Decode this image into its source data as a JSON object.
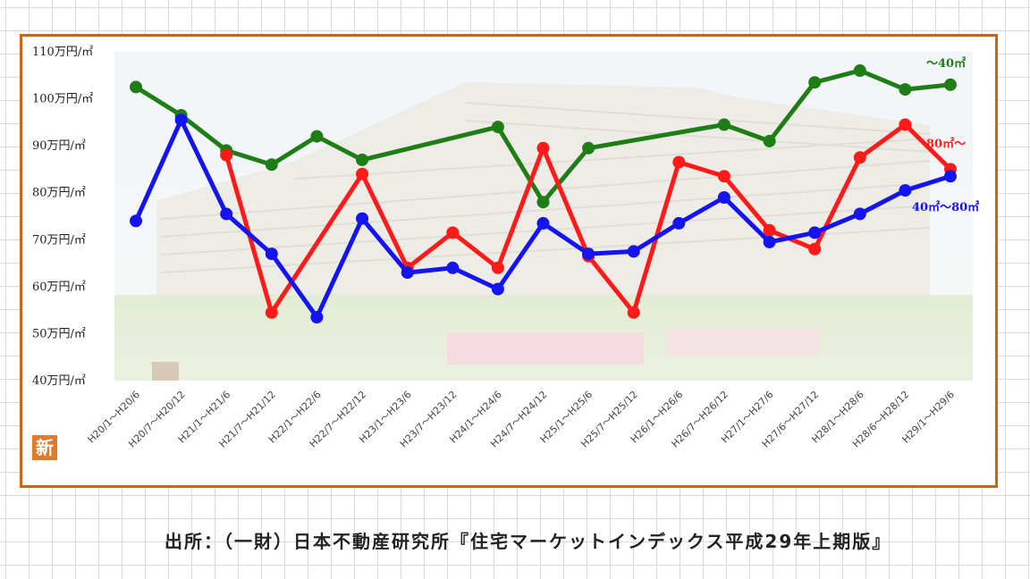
{
  "source_note": "出所：（一財）日本不動産研究所『住宅マーケットインデックス平成29年上期版』",
  "badge": "新",
  "chart_data": {
    "type": "line",
    "title": "",
    "xlabel": "",
    "ylabel": "",
    "ylim": [
      40,
      110
    ],
    "yticks": [
      110,
      100,
      90,
      80,
      70,
      60,
      50,
      40
    ],
    "ytick_labels": [
      "110万円/㎡",
      "100万円/㎡",
      "90万円/㎡",
      "80万円/㎡",
      "70万円/㎡",
      "60万円/㎡",
      "50万円/㎡",
      "40万円/㎡"
    ],
    "categories": [
      "H20/1～H20/6",
      "H20/7～H20/12",
      "H21/1～H21/6",
      "H21/7～H21/12",
      "H22/1～H22/6",
      "H22/7～H22/12",
      "H23/1～H23/6",
      "H23/7～H23/12",
      "H24/1～H24/6",
      "H24/7～H24/12",
      "H25/1～H25/6",
      "H25/7～H25/12",
      "H26/1～H26/6",
      "H26/7～H26/12",
      "H27/1～H27/6",
      "H27/6～H27/12",
      "H28/1～H28/6",
      "H28/6～H28/12",
      "H29/1～H29/6"
    ],
    "series": [
      {
        "name": "～40㎡",
        "color": "#1e7d14",
        "values": [
          102.5,
          96.5,
          89,
          86,
          92,
          87,
          null,
          null,
          94,
          78,
          89.5,
          null,
          null,
          94.5,
          91,
          103.5,
          106,
          102,
          103
        ]
      },
      {
        "name": "80㎡～",
        "color": "#ff1a1a",
        "values": [
          null,
          null,
          88,
          54.5,
          null,
          84,
          64,
          71.5,
          64,
          89.5,
          66.5,
          54.5,
          86.5,
          83.5,
          72,
          68,
          87.5,
          94.5,
          85
        ]
      },
      {
        "name": "40㎡～80㎡",
        "color": "#1414f0",
        "values": [
          74,
          95.5,
          75.5,
          67,
          53.5,
          74.5,
          63,
          64,
          59.5,
          73.5,
          67,
          67.5,
          73.5,
          79,
          69.5,
          71.5,
          75.5,
          80.5,
          83.5
        ]
      }
    ],
    "legend": "labels at right end of each line",
    "grid": false
  }
}
